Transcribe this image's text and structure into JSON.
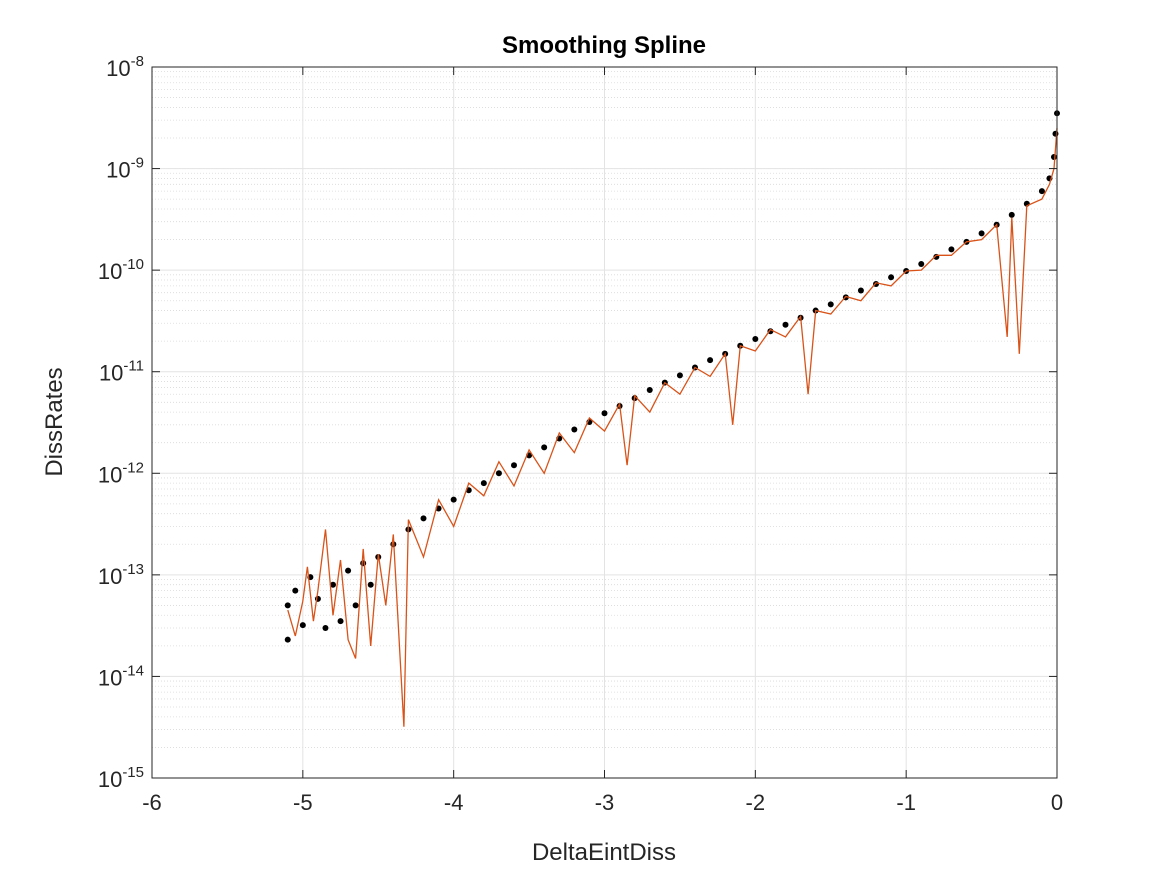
{
  "chart_data": {
    "type": "scatter",
    "title": "Smoothing Spline",
    "xlabel": "DeltaEintDiss",
    "ylabel": "DissRates",
    "xlim": [
      -6,
      0
    ],
    "ylim": [
      1e-15,
      1e-08
    ],
    "yscale": "log",
    "grid": true,
    "minor_grid": true,
    "x_ticks": [
      -6,
      -5,
      -4,
      -3,
      -2,
      -1,
      0
    ],
    "x_tick_labels": [
      "-6",
      "-5",
      "-4",
      "-3",
      "-2",
      "-1",
      "0"
    ],
    "y_ticks": [
      1e-15,
      1e-14,
      1e-13,
      1e-12,
      1e-11,
      1e-10,
      1e-09,
      1e-08
    ],
    "y_tick_labels": [
      {
        "base": "10",
        "exp": "-15"
      },
      {
        "base": "10",
        "exp": "-14"
      },
      {
        "base": "10",
        "exp": "-13"
      },
      {
        "base": "10",
        "exp": "-12"
      },
      {
        "base": "10",
        "exp": "-11"
      },
      {
        "base": "10",
        "exp": "-10"
      },
      {
        "base": "10",
        "exp": "-9"
      },
      {
        "base": "10",
        "exp": "-8"
      }
    ],
    "series": [
      {
        "kind": "scatter",
        "color": "#000000",
        "points": [
          [
            -5.1,
            5e-14
          ],
          [
            -5.1,
            2.3e-14
          ],
          [
            -5.05,
            7e-14
          ],
          [
            -5.0,
            3.2e-14
          ],
          [
            -4.95,
            9.5e-14
          ],
          [
            -4.9,
            5.8e-14
          ],
          [
            -4.85,
            3e-14
          ],
          [
            -4.8,
            8e-14
          ],
          [
            -4.75,
            3.5e-14
          ],
          [
            -4.7,
            1.1e-13
          ],
          [
            -4.65,
            5e-14
          ],
          [
            -4.6,
            1.3e-13
          ],
          [
            -4.55,
            8e-14
          ],
          [
            -4.5,
            1.5e-13
          ],
          [
            -4.4,
            2e-13
          ],
          [
            -4.3,
            2.8e-13
          ],
          [
            -4.2,
            3.6e-13
          ],
          [
            -4.1,
            4.5e-13
          ],
          [
            -4.0,
            5.5e-13
          ],
          [
            -3.9,
            6.8e-13
          ],
          [
            -3.8,
            8e-13
          ],
          [
            -3.7,
            1e-12
          ],
          [
            -3.6,
            1.2e-12
          ],
          [
            -3.5,
            1.5e-12
          ],
          [
            -3.4,
            1.8e-12
          ],
          [
            -3.3,
            2.2e-12
          ],
          [
            -3.2,
            2.7e-12
          ],
          [
            -3.1,
            3.2e-12
          ],
          [
            -3.0,
            3.9e-12
          ],
          [
            -2.9,
            4.6e-12
          ],
          [
            -2.8,
            5.5e-12
          ],
          [
            -2.7,
            6.6e-12
          ],
          [
            -2.6,
            7.8e-12
          ],
          [
            -2.5,
            9.2e-12
          ],
          [
            -2.4,
            1.1e-11
          ],
          [
            -2.3,
            1.3e-11
          ],
          [
            -2.2,
            1.5e-11
          ],
          [
            -2.1,
            1.8e-11
          ],
          [
            -2.0,
            2.1e-11
          ],
          [
            -1.9,
            2.5e-11
          ],
          [
            -1.8,
            2.9e-11
          ],
          [
            -1.7,
            3.4e-11
          ],
          [
            -1.6,
            4e-11
          ],
          [
            -1.5,
            4.6e-11
          ],
          [
            -1.4,
            5.4e-11
          ],
          [
            -1.3,
            6.3e-11
          ],
          [
            -1.2,
            7.3e-11
          ],
          [
            -1.1,
            8.5e-11
          ],
          [
            -1.0,
            9.8e-11
          ],
          [
            -0.9,
            1.15e-10
          ],
          [
            -0.8,
            1.35e-10
          ],
          [
            -0.7,
            1.6e-10
          ],
          [
            -0.6,
            1.9e-10
          ],
          [
            -0.5,
            2.3e-10
          ],
          [
            -0.4,
            2.8e-10
          ],
          [
            -0.3,
            3.5e-10
          ],
          [
            -0.2,
            4.5e-10
          ],
          [
            -0.1,
            6e-10
          ],
          [
            -0.05,
            8e-10
          ],
          [
            -0.02,
            1.3e-09
          ],
          [
            -0.01,
            2.2e-09
          ],
          [
            0.0,
            3.5e-09
          ]
        ]
      },
      {
        "kind": "line",
        "color": "#d95319",
        "points": [
          [
            -5.1,
            4.5e-14
          ],
          [
            -5.05,
            2.5e-14
          ],
          [
            -5.0,
            5.5e-14
          ],
          [
            -4.97,
            1.2e-13
          ],
          [
            -4.93,
            3.5e-14
          ],
          [
            -4.9,
            7e-14
          ],
          [
            -4.85,
            2.8e-13
          ],
          [
            -4.8,
            4e-14
          ],
          [
            -4.75,
            1.4e-13
          ],
          [
            -4.7,
            2.3e-14
          ],
          [
            -4.65,
            1.5e-14
          ],
          [
            -4.6,
            1.8e-13
          ],
          [
            -4.55,
            2e-14
          ],
          [
            -4.5,
            1.6e-13
          ],
          [
            -4.45,
            5e-14
          ],
          [
            -4.4,
            2.5e-13
          ],
          [
            -4.33,
            3.2e-15
          ],
          [
            -4.3,
            3.5e-13
          ],
          [
            -4.2,
            1.5e-13
          ],
          [
            -4.1,
            5.5e-13
          ],
          [
            -4.0,
            3e-13
          ],
          [
            -3.9,
            8e-13
          ],
          [
            -3.8,
            6e-13
          ],
          [
            -3.7,
            1.3e-12
          ],
          [
            -3.6,
            7.5e-13
          ],
          [
            -3.5,
            1.7e-12
          ],
          [
            -3.4,
            1e-12
          ],
          [
            -3.3,
            2.5e-12
          ],
          [
            -3.2,
            1.6e-12
          ],
          [
            -3.1,
            3.5e-12
          ],
          [
            -3.0,
            2.6e-12
          ],
          [
            -2.9,
            4.8e-12
          ],
          [
            -2.85,
            1.2e-12
          ],
          [
            -2.8,
            5.8e-12
          ],
          [
            -2.7,
            4e-12
          ],
          [
            -2.6,
            7.8e-12
          ],
          [
            -2.5,
            6e-12
          ],
          [
            -2.4,
            1.1e-11
          ],
          [
            -2.3,
            9e-12
          ],
          [
            -2.2,
            1.5e-11
          ],
          [
            -2.15,
            3e-12
          ],
          [
            -2.1,
            1.8e-11
          ],
          [
            -2.0,
            1.6e-11
          ],
          [
            -1.9,
            2.6e-11
          ],
          [
            -1.8,
            2.2e-11
          ],
          [
            -1.7,
            3.5e-11
          ],
          [
            -1.65,
            6e-12
          ],
          [
            -1.6,
            4e-11
          ],
          [
            -1.5,
            3.7e-11
          ],
          [
            -1.4,
            5.5e-11
          ],
          [
            -1.3,
            5e-11
          ],
          [
            -1.2,
            7.5e-11
          ],
          [
            -1.1,
            7e-11
          ],
          [
            -1.0,
            9.8e-11
          ],
          [
            -0.9,
            1e-10
          ],
          [
            -0.8,
            1.4e-10
          ],
          [
            -0.7,
            1.4e-10
          ],
          [
            -0.6,
            1.9e-10
          ],
          [
            -0.5,
            2e-10
          ],
          [
            -0.4,
            2.8e-10
          ],
          [
            -0.33,
            2.2e-11
          ],
          [
            -0.3,
            3.3e-10
          ],
          [
            -0.25,
            1.5e-11
          ],
          [
            -0.2,
            4.3e-10
          ],
          [
            -0.1,
            5e-10
          ],
          [
            -0.05,
            7e-10
          ],
          [
            -0.02,
            1e-09
          ],
          [
            0.0,
            2.5e-09
          ]
        ]
      }
    ]
  }
}
